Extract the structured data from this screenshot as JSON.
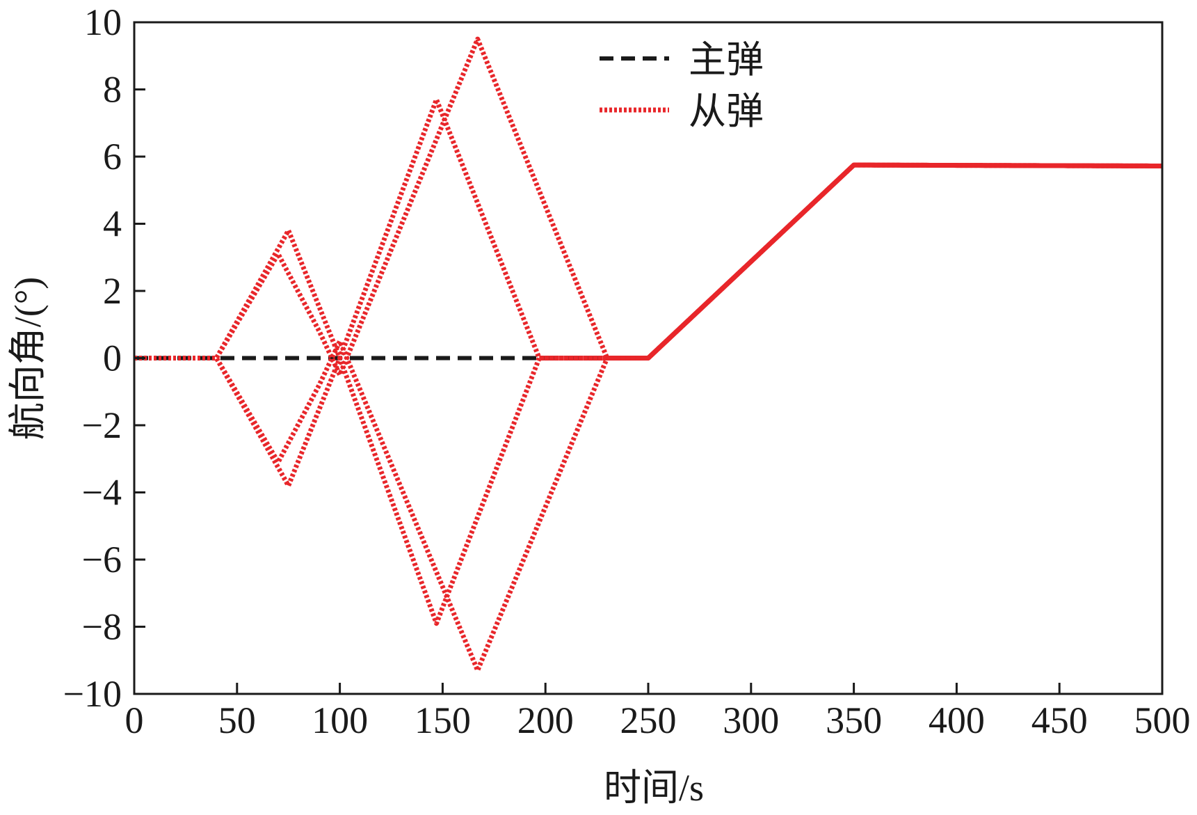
{
  "chart_data": {
    "type": "line",
    "title": "",
    "xlabel": "时间/s",
    "ylabel": "航向角/(°)",
    "xlim": [
      0,
      500
    ],
    "ylim": [
      -10,
      10
    ],
    "xticks": [
      0,
      50,
      100,
      150,
      200,
      250,
      300,
      350,
      400,
      450,
      500
    ],
    "yticks": [
      -10,
      -8,
      -6,
      -4,
      -2,
      0,
      2,
      4,
      6,
      8,
      10
    ],
    "xtick_labels": [
      "0",
      "50",
      "100",
      "150",
      "200",
      "250",
      "300",
      "350",
      "400",
      "450",
      "500"
    ],
    "ytick_labels": [
      "−10",
      "−8",
      "−6",
      "−4",
      "−2",
      "0",
      "2",
      "4",
      "6",
      "8",
      "10"
    ],
    "grid": false,
    "legend_position": "top-center",
    "series": [
      {
        "name": "主弹",
        "color": "#1a1a1a",
        "style": "dashed",
        "points": [
          [
            0,
            0
          ],
          [
            250,
            0
          ],
          [
            350,
            5.75
          ],
          [
            500,
            5.72
          ]
        ]
      },
      {
        "name": "从弹",
        "color": "#e8262a",
        "style": "dotted",
        "points": [
          [
            0,
            0
          ],
          [
            40,
            0
          ],
          [
            75,
            3.8
          ],
          [
            100,
            0
          ],
          [
            147,
            7.7
          ],
          [
            197,
            0
          ],
          [
            250,
            0
          ],
          [
            350,
            5.75
          ],
          [
            500,
            5.72
          ]
        ]
      },
      {
        "name": "从弹",
        "color": "#e8262a",
        "style": "dotted",
        "points": [
          [
            0,
            0
          ],
          [
            40,
            0
          ],
          [
            75,
            -3.8
          ],
          [
            100,
            0
          ],
          [
            147,
            -7.9
          ],
          [
            197,
            0
          ],
          [
            250,
            0
          ],
          [
            350,
            5.75
          ],
          [
            500,
            5.72
          ]
        ]
      },
      {
        "name": "从弹",
        "color": "#e8262a",
        "style": "dotted",
        "points": [
          [
            0,
            0
          ],
          [
            40,
            0
          ],
          [
            70,
            3.1
          ],
          [
            90,
            0.8
          ],
          [
            100,
            -0.5
          ],
          [
            167,
            9.5
          ],
          [
            230,
            0
          ],
          [
            250,
            0
          ],
          [
            350,
            5.75
          ],
          [
            500,
            5.72
          ]
        ]
      },
      {
        "name": "从弹",
        "color": "#e8262a",
        "style": "dotted",
        "points": [
          [
            0,
            0
          ],
          [
            40,
            0
          ],
          [
            70,
            -3.1
          ],
          [
            90,
            -0.8
          ],
          [
            100,
            0.5
          ],
          [
            167,
            -9.3
          ],
          [
            230,
            0
          ],
          [
            250,
            0
          ],
          [
            350,
            5.75
          ],
          [
            500,
            5.72
          ]
        ]
      }
    ],
    "legend": [
      {
        "label": "主弹",
        "color": "#1a1a1a",
        "style": "dashed"
      },
      {
        "label": "从弹",
        "color": "#e8262a",
        "style": "dotted"
      }
    ]
  }
}
